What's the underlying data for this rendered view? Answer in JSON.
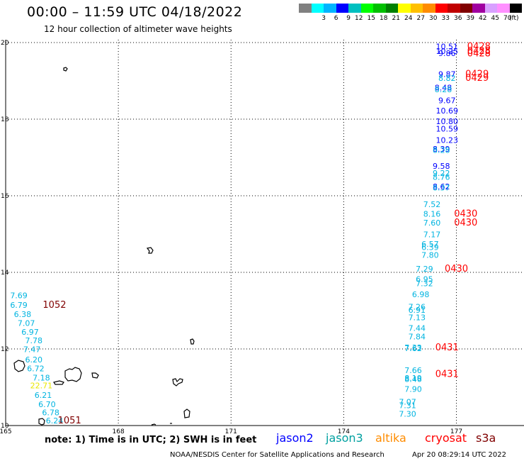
{
  "header": {
    "title": "00:00 – 11:59 UTC 04/18/2022",
    "subtitle": "12 hour collection of altimeter wave heights"
  },
  "color_scale": {
    "unit": "(ft)",
    "swatches": [
      {
        "color": "#808080",
        "label": ""
      },
      {
        "color": "#00ffff",
        "label": "3"
      },
      {
        "color": "#00b4ff",
        "label": "6"
      },
      {
        "color": "#0000ff",
        "label": "9"
      },
      {
        "color": "#00c0c0",
        "label": "12"
      },
      {
        "color": "#00ff00",
        "label": "15"
      },
      {
        "color": "#00c000",
        "label": "18"
      },
      {
        "color": "#008000",
        "label": "21"
      },
      {
        "color": "#ffff00",
        "label": "24"
      },
      {
        "color": "#ffc000",
        "label": "27"
      },
      {
        "color": "#ff8c00",
        "label": "30"
      },
      {
        "color": "#ff0000",
        "label": "33"
      },
      {
        "color": "#c00000",
        "label": "36"
      },
      {
        "color": "#800000",
        "label": "39"
      },
      {
        "color": "#a000a0",
        "label": "42"
      },
      {
        "color": "#d8a0ff",
        "label": "45"
      },
      {
        "color": "#ff90ff",
        "label": "70"
      },
      {
        "color": "#000000",
        "label": ""
      }
    ]
  },
  "map": {
    "lon_ticks": [
      "165",
      "168",
      "171",
      "174",
      "177"
    ],
    "lat_ticks": [
      "20",
      "18",
      "16",
      "14",
      "12",
      "10"
    ],
    "lon_range": [
      165,
      178.8
    ],
    "lat_range": [
      10,
      20
    ]
  },
  "satellite_colors": {
    "jason2": "#0000ff",
    "jason3": "#00a0a0",
    "cyan": "#00b4e0",
    "altika": "#ff8c00",
    "cryosat": "#ff0000",
    "dark": "#800000",
    "yellow": "#e8e800"
  },
  "wave_readings": [
    {
      "lon": 176.75,
      "lat": 19.82,
      "value": "10.51",
      "sat": "jason2"
    },
    {
      "lon": 176.75,
      "lat": 19.7,
      "value": "10.25",
      "sat": "jason2"
    },
    {
      "lon": 176.75,
      "lat": 19.65,
      "value": "9.86",
      "sat": "jason2"
    },
    {
      "lon": 176.75,
      "lat": 19.1,
      "value": "9.87",
      "sat": "jason2"
    },
    {
      "lon": 176.75,
      "lat": 19.0,
      "value": "8.82",
      "sat": "cyan"
    },
    {
      "lon": 176.65,
      "lat": 18.75,
      "value": "8.48",
      "sat": "jason2"
    },
    {
      "lon": 176.65,
      "lat": 18.7,
      "value": "8.28",
      "sat": "cyan"
    },
    {
      "lon": 176.75,
      "lat": 18.42,
      "value": "9.67",
      "sat": "jason2"
    },
    {
      "lon": 176.75,
      "lat": 18.15,
      "value": "10.69",
      "sat": "jason2"
    },
    {
      "lon": 176.75,
      "lat": 17.87,
      "value": "10.80",
      "sat": "jason2"
    },
    {
      "lon": 176.75,
      "lat": 17.68,
      "value": "10.59",
      "sat": "jason2"
    },
    {
      "lon": 176.75,
      "lat": 17.38,
      "value": "10.23",
      "sat": "jason2"
    },
    {
      "lon": 176.6,
      "lat": 17.15,
      "value": "8.39",
      "sat": "jason2"
    },
    {
      "lon": 176.6,
      "lat": 17.12,
      "value": "8.28",
      "sat": "cyan"
    },
    {
      "lon": 176.6,
      "lat": 16.7,
      "value": "9.58",
      "sat": "jason2"
    },
    {
      "lon": 176.6,
      "lat": 16.52,
      "value": "9.22",
      "sat": "cyan"
    },
    {
      "lon": 176.6,
      "lat": 16.42,
      "value": "8.76",
      "sat": "cyan"
    },
    {
      "lon": 176.6,
      "lat": 16.17,
      "value": "8.62",
      "sat": "jason2"
    },
    {
      "lon": 176.6,
      "lat": 16.14,
      "value": "8.37",
      "sat": "cyan"
    },
    {
      "lon": 176.35,
      "lat": 15.7,
      "value": "7.52",
      "sat": "cyan"
    },
    {
      "lon": 176.35,
      "lat": 15.45,
      "value": "8.16",
      "sat": "cyan"
    },
    {
      "lon": 176.35,
      "lat": 15.22,
      "value": "7.60",
      "sat": "cyan"
    },
    {
      "lon": 176.35,
      "lat": 14.92,
      "value": "7.17",
      "sat": "cyan"
    },
    {
      "lon": 176.3,
      "lat": 14.67,
      "value": "6.57",
      "sat": "cyan"
    },
    {
      "lon": 176.3,
      "lat": 14.58,
      "value": "6.39",
      "sat": "cyan"
    },
    {
      "lon": 176.3,
      "lat": 14.38,
      "value": "7.80",
      "sat": "cyan"
    },
    {
      "lon": 176.15,
      "lat": 14.02,
      "value": "7.29",
      "sat": "cyan"
    },
    {
      "lon": 176.15,
      "lat": 13.75,
      "value": "6.95",
      "sat": "cyan"
    },
    {
      "lon": 176.15,
      "lat": 13.64,
      "value": "7.32",
      "sat": "cyan"
    },
    {
      "lon": 176.05,
      "lat": 13.35,
      "value": "6.98",
      "sat": "cyan"
    },
    {
      "lon": 175.95,
      "lat": 13.03,
      "value": "7.26",
      "sat": "cyan"
    },
    {
      "lon": 175.95,
      "lat": 12.94,
      "value": "6.91",
      "sat": "cyan"
    },
    {
      "lon": 175.95,
      "lat": 12.75,
      "value": "7.13",
      "sat": "cyan"
    },
    {
      "lon": 175.95,
      "lat": 12.47,
      "value": "7.44",
      "sat": "cyan"
    },
    {
      "lon": 175.95,
      "lat": 12.25,
      "value": "7.84",
      "sat": "cyan"
    },
    {
      "lon": 175.85,
      "lat": 11.96,
      "value": "7.33",
      "sat": "cyan"
    },
    {
      "lon": 175.85,
      "lat": 11.94,
      "value": "7.62",
      "sat": "cyan"
    },
    {
      "lon": 175.85,
      "lat": 11.37,
      "value": "7.66",
      "sat": "cyan"
    },
    {
      "lon": 175.85,
      "lat": 11.17,
      "value": "8.19",
      "sat": "cyan"
    },
    {
      "lon": 175.85,
      "lat": 11.14,
      "value": "8.46",
      "sat": "cyan"
    },
    {
      "lon": 175.85,
      "lat": 10.88,
      "value": "7.90",
      "sat": "cyan"
    },
    {
      "lon": 175.7,
      "lat": 10.55,
      "value": "7.07",
      "sat": "cyan"
    },
    {
      "lon": 175.7,
      "lat": 10.45,
      "value": "7.31",
      "sat": "cyan"
    },
    {
      "lon": 175.7,
      "lat": 10.23,
      "value": "7.30",
      "sat": "cyan"
    },
    {
      "lon": 165.35,
      "lat": 13.32,
      "value": "7.69",
      "sat": "cyan"
    },
    {
      "lon": 165.35,
      "lat": 13.07,
      "value": "6.79",
      "sat": "cyan"
    },
    {
      "lon": 165.45,
      "lat": 12.83,
      "value": "6.38",
      "sat": "cyan"
    },
    {
      "lon": 165.55,
      "lat": 12.6,
      "value": "7.07",
      "sat": "cyan"
    },
    {
      "lon": 165.65,
      "lat": 12.37,
      "value": "6.97",
      "sat": "cyan"
    },
    {
      "lon": 165.75,
      "lat": 12.15,
      "value": "7.78",
      "sat": "cyan"
    },
    {
      "lon": 165.7,
      "lat": 11.92,
      "value": "7.47",
      "sat": "cyan"
    },
    {
      "lon": 165.75,
      "lat": 11.65,
      "value": "6.20",
      "sat": "cyan"
    },
    {
      "lon": 165.8,
      "lat": 11.42,
      "value": "6.72",
      "sat": "cyan"
    },
    {
      "lon": 165.95,
      "lat": 11.18,
      "value": "7.18",
      "sat": "cyan"
    },
    {
      "lon": 165.95,
      "lat": 10.97,
      "value": "22.71",
      "sat": "yellow"
    },
    {
      "lon": 166.0,
      "lat": 10.72,
      "value": "6.21",
      "sat": "cyan"
    },
    {
      "lon": 166.1,
      "lat": 10.48,
      "value": "6.70",
      "sat": "cyan"
    },
    {
      "lon": 166.2,
      "lat": 10.27,
      "value": "6.78",
      "sat": "cyan"
    },
    {
      "lon": 166.3,
      "lat": 10.06,
      "value": "6.24",
      "sat": "cyan"
    }
  ],
  "track_ids": [
    {
      "lon": 177.6,
      "lat": 19.82,
      "value": "0428",
      "sat": "cryosat"
    },
    {
      "lon": 177.6,
      "lat": 19.7,
      "value": "0428",
      "sat": "cryosat"
    },
    {
      "lon": 177.6,
      "lat": 19.64,
      "value": "0428",
      "sat": "cryosat"
    },
    {
      "lon": 177.55,
      "lat": 19.1,
      "value": "0429",
      "sat": "cryosat"
    },
    {
      "lon": 177.55,
      "lat": 19.0,
      "value": "0429",
      "sat": "cryosat"
    },
    {
      "lon": 177.25,
      "lat": 15.45,
      "value": "0430",
      "sat": "cryosat"
    },
    {
      "lon": 177.25,
      "lat": 15.22,
      "value": "0430",
      "sat": "cryosat"
    },
    {
      "lon": 177.0,
      "lat": 14.02,
      "value": "0430",
      "sat": "cryosat"
    },
    {
      "lon": 176.75,
      "lat": 11.96,
      "value": "0431",
      "sat": "cryosat"
    },
    {
      "lon": 176.75,
      "lat": 11.27,
      "value": "0431",
      "sat": "cryosat"
    },
    {
      "lon": 166.3,
      "lat": 13.07,
      "value": "1052",
      "sat": "dark"
    },
    {
      "lon": 166.7,
      "lat": 10.06,
      "value": "1051",
      "sat": "dark"
    }
  ],
  "footer": {
    "note": "note:  1) Time is in UTC;  2) SWH is in feet",
    "legend": [
      {
        "label": "jason2",
        "sat": "jason2"
      },
      {
        "label": "jason3",
        "sat": "jason3"
      },
      {
        "label": "altika",
        "sat": "altika"
      },
      {
        "label": "cryosat",
        "sat": "cryosat"
      },
      {
        "label": "s3a",
        "sat": "dark"
      }
    ],
    "credit": "NOAA/NESDIS Center for Satellite Applications and Research",
    "timestamp": "Apr 20 08:29:14 UTC 2022"
  }
}
